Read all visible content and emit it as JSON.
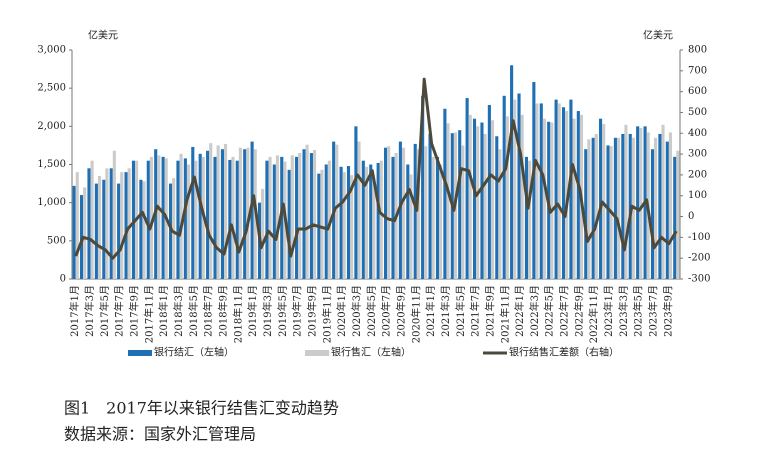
{
  "chart_data": {
    "type": "bar-line",
    "title": "图1　2017年以来银行结售汇变动趋势",
    "source": "数据来源：国家外汇管理局",
    "ylabel": "亿美元",
    "y2label": "亿美元",
    "categories": [
      "2017年1月",
      null,
      "2017年3月",
      null,
      "2017年5月",
      null,
      "2017年7月",
      null,
      "2017年9月",
      null,
      "2017年11月",
      null,
      "2018年1月",
      null,
      "2018年3月",
      null,
      "2018年5月",
      null,
      "2018年7月",
      null,
      "2018年9月",
      null,
      "2018年11月",
      null,
      "2019年1月",
      null,
      "2019年3月",
      null,
      "2019年5月",
      null,
      "2019年7月",
      null,
      "2019年9月",
      null,
      "2019年11月",
      null,
      "2020年1月",
      null,
      "2020年3月",
      null,
      "2020年5月",
      null,
      "2020年7月",
      null,
      "2020年9月",
      null,
      "2020年11月",
      null,
      "2021年1月",
      null,
      "2021年3月",
      null,
      "2021年5月",
      null,
      "2021年7月",
      null,
      "2021年9月",
      null,
      "2021年11月",
      null,
      "2022年1月",
      null,
      "2022年3月",
      null,
      "2022年5月",
      null,
      "2022年7月",
      null,
      "2022年9月",
      null,
      "2022年11月",
      null,
      "2023年1月",
      null,
      "2023年3月",
      null,
      "2023年5月",
      null,
      "2023年7月",
      null,
      "2023年9月",
      null
    ],
    "series": [
      {
        "name": "银行结汇（左轴）",
        "kind": "bar",
        "color": "#1f6fb5",
        "values": [
          1220,
          1100,
          1450,
          1250,
          1300,
          1450,
          1250,
          1400,
          1550,
          1300,
          1550,
          1700,
          1600,
          1250,
          1550,
          1580,
          1730,
          1640,
          1680,
          1600,
          1700,
          1560,
          1550,
          1700,
          1800,
          1000,
          1550,
          1500,
          1600,
          1430,
          1600,
          1700,
          1650,
          1380,
          1500,
          1800,
          1470,
          1480,
          2000,
          1550,
          1500,
          1520,
          1720,
          1600,
          1800,
          1500,
          1770,
          2400,
          1900,
          1600,
          2230,
          1910,
          1950,
          2370,
          2100,
          2050,
          2280,
          1870,
          2400,
          2800,
          2430,
          1600,
          2580,
          2300,
          2060,
          2350,
          2250,
          2350,
          2200,
          1700,
          1850,
          2100,
          1750,
          1850,
          1900,
          1900,
          2000,
          2000,
          1700,
          1900,
          1800,
          1600
        ]
      },
      {
        "name": "银行售汇（左轴）",
        "kind": "bar",
        "color": "#cbcbcb",
        "values": [
          1400,
          1200,
          1550,
          1350,
          1450,
          1680,
          1400,
          1450,
          1550,
          1280,
          1600,
          1620,
          1580,
          1320,
          1640,
          1500,
          1550,
          1600,
          1780,
          1750,
          1770,
          1600,
          1720,
          1720,
          1700,
          1180,
          1600,
          1620,
          1540,
          1620,
          1650,
          1760,
          1690,
          1430,
          1550,
          1760,
          1400,
          1360,
          1800,
          1470,
          1300,
          1550,
          1740,
          1650,
          1720,
          1370,
          1700,
          1740,
          1600,
          1500,
          2040,
          1920,
          1750,
          2150,
          2000,
          1900,
          2080,
          1700,
          2130,
          2350,
          2150,
          1550,
          2300,
          2100,
          2050,
          2300,
          2200,
          2100,
          2150,
          1830,
          1900,
          2030,
          1740,
          1850,
          2020,
          1850,
          1980,
          1920,
          1850,
          2020,
          1920,
          1680
        ]
      },
      {
        "name": "银行结售汇差额（右轴）",
        "kind": "line",
        "axis": "y2",
        "color": "#4d4a3c",
        "values": [
          -190,
          -100,
          -110,
          -140,
          -160,
          -200,
          -160,
          -60,
          -20,
          20,
          -60,
          50,
          10,
          -70,
          -90,
          80,
          190,
          40,
          -90,
          -150,
          -180,
          -40,
          -170,
          -70,
          100,
          -150,
          -70,
          -110,
          60,
          -190,
          -60,
          -60,
          -40,
          -50,
          -60,
          40,
          70,
          120,
          200,
          150,
          220,
          20,
          -10,
          -20,
          70,
          130,
          30,
          660,
          350,
          250,
          150,
          30,
          230,
          220,
          100,
          150,
          200,
          170,
          230,
          460,
          300,
          40,
          270,
          200,
          20,
          60,
          0,
          250,
          130,
          -120,
          -60,
          70,
          30,
          -10,
          -160,
          50,
          30,
          80,
          -150,
          -100,
          -130,
          -70
        ]
      }
    ],
    "ylim": [
      0,
      3000
    ],
    "yticks": [
      0,
      500,
      {
        "value": 1000,
        "label": "1,000"
      },
      {
        "value": 1500,
        "label": "1,500"
      },
      {
        "value": 2000,
        "label": "2,000"
      },
      {
        "value": 2500,
        "label": "2,500"
      },
      {
        "value": 3000,
        "label": "3,000"
      }
    ],
    "y2lim": [
      -300,
      800
    ],
    "y2ticks": [
      -300,
      -200,
      -100,
      0,
      100,
      200,
      300,
      400,
      500,
      600,
      700,
      800
    ],
    "legend": "bottom"
  }
}
